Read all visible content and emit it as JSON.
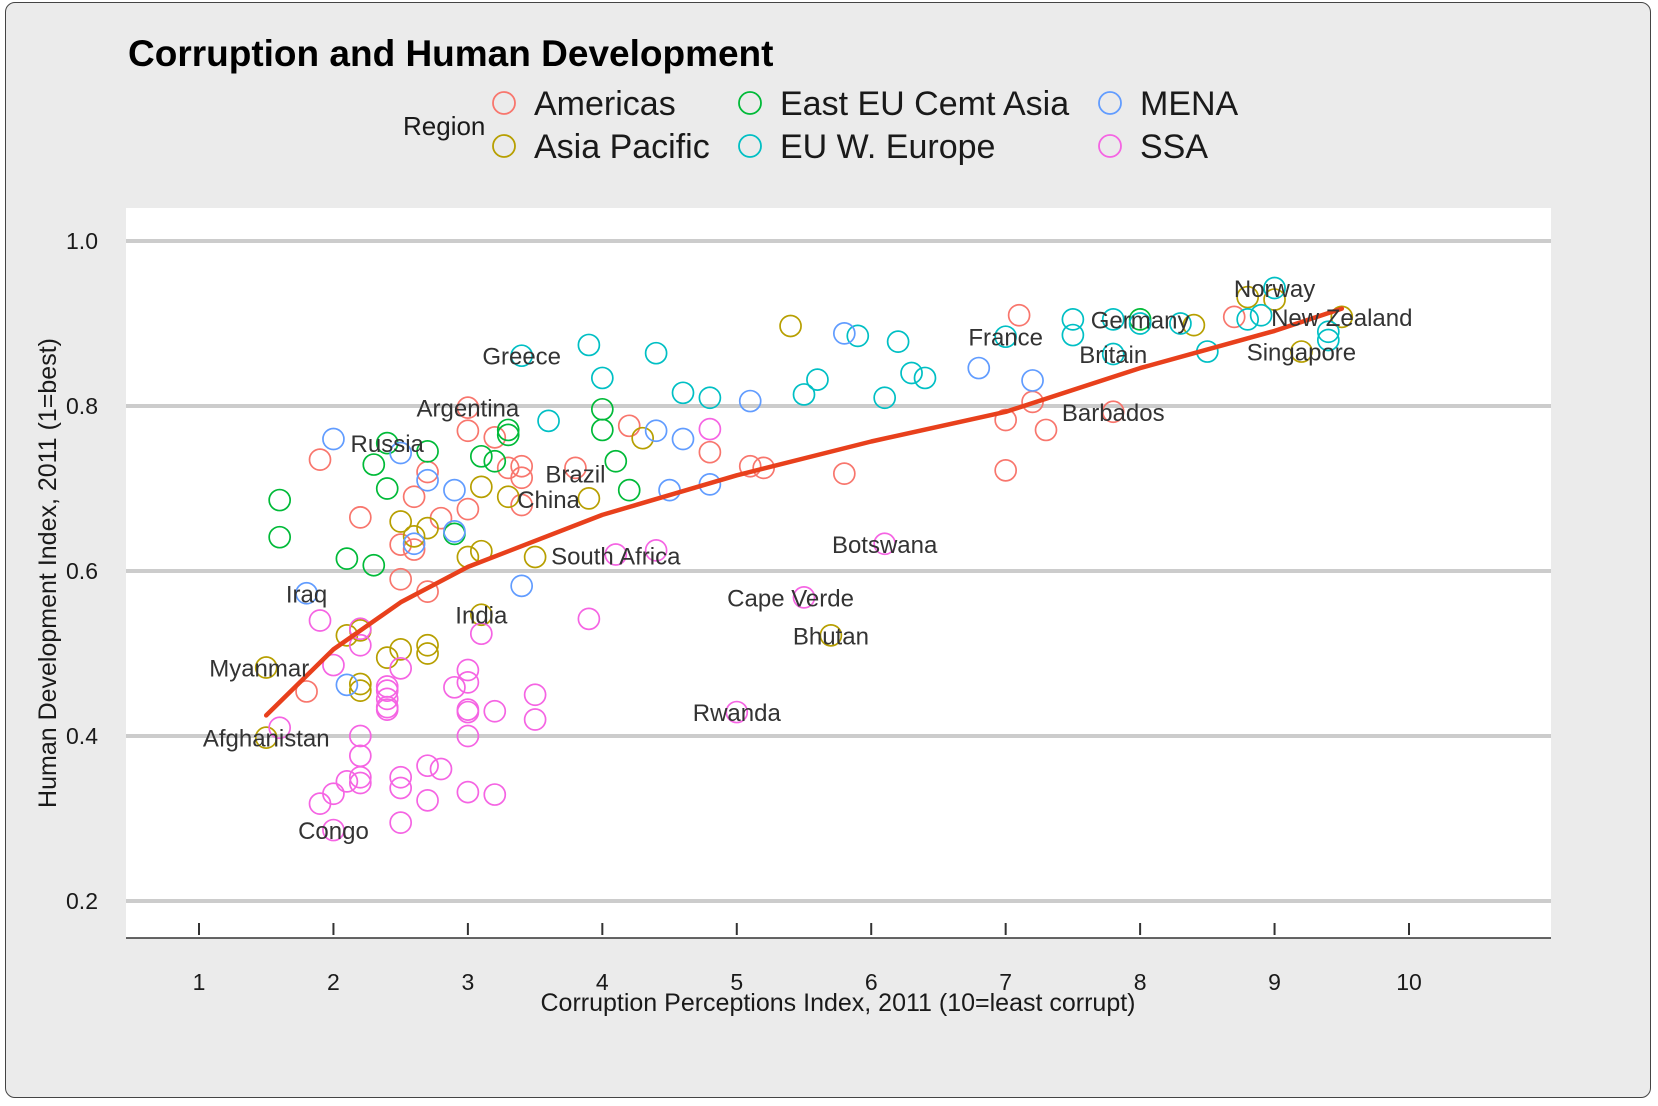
{
  "chart_data": {
    "type": "scatter",
    "title": "Corruption and Human Development",
    "xlabel": "Corruption Perceptions Index, 2011 (10=least corrupt)",
    "ylabel": "Human Development Index, 2011 (1=best)",
    "xlim": [
      0.5,
      10.5
    ],
    "ylim": [
      0.2,
      1.0
    ],
    "x_ticks": [
      1,
      2,
      3,
      4,
      5,
      6,
      7,
      8,
      9,
      10
    ],
    "y_ticks": [
      0.2,
      0.4,
      0.6,
      0.8,
      1.0
    ],
    "grid": "horizontal",
    "legend": {
      "title": "Region",
      "placement": "top",
      "entries": [
        {
          "name": "Americas",
          "color": "#f8766d"
        },
        {
          "name": "Asia Pacific",
          "color": "#b79f00"
        },
        {
          "name": "East EU Cemt Asia",
          "color": "#00ba38"
        },
        {
          "name": "EU W. Europe",
          "color": "#00bfc4"
        },
        {
          "name": "MENA",
          "color": "#619cff"
        },
        {
          "name": "SSA",
          "color": "#f564e3"
        }
      ]
    },
    "trend_line": {
      "color": "#e8401c",
      "points": [
        [
          1.5,
          0.425
        ],
        [
          2,
          0.505
        ],
        [
          2.5,
          0.562
        ],
        [
          3,
          0.605
        ],
        [
          4,
          0.668
        ],
        [
          5,
          0.716
        ],
        [
          6,
          0.757
        ],
        [
          7,
          0.793
        ],
        [
          8,
          0.846
        ],
        [
          9,
          0.891
        ],
        [
          9.5,
          0.918
        ]
      ]
    },
    "series": [
      {
        "name": "Americas",
        "color": "#f8766d",
        "points": [
          [
            1.9,
            0.735
          ],
          [
            2.2,
            0.665
          ],
          [
            2.5,
            0.59
          ],
          [
            2.5,
            0.632
          ],
          [
            2.6,
            0.69
          ],
          [
            2.6,
            0.626
          ],
          [
            2.7,
            0.575
          ],
          [
            2.7,
            0.72
          ],
          [
            2.8,
            0.664
          ],
          [
            3.0,
            0.798
          ],
          [
            3.0,
            0.77
          ],
          [
            3.0,
            0.675
          ],
          [
            3.2,
            0.762
          ],
          [
            3.3,
            0.725
          ],
          [
            3.4,
            0.727
          ],
          [
            3.4,
            0.68
          ],
          [
            3.4,
            0.713
          ],
          [
            3.8,
            0.725
          ],
          [
            4.2,
            0.776
          ],
          [
            4.8,
            0.744
          ],
          [
            5.1,
            0.727
          ],
          [
            5.2,
            0.725
          ],
          [
            5.8,
            0.718
          ],
          [
            7.0,
            0.783
          ],
          [
            7.0,
            0.722
          ],
          [
            7.1,
            0.91
          ],
          [
            7.2,
            0.805
          ],
          [
            7.3,
            0.771
          ],
          [
            7.8,
            0.793
          ],
          [
            8.7,
            0.908
          ],
          [
            1.8,
            0.454
          ]
        ]
      },
      {
        "name": "Asia Pacific",
        "color": "#b79f00",
        "points": [
          [
            1.5,
            0.483
          ],
          [
            1.5,
            0.398
          ],
          [
            2.1,
            0.522
          ],
          [
            2.2,
            0.463
          ],
          [
            2.2,
            0.455
          ],
          [
            2.2,
            0.528
          ],
          [
            2.4,
            0.495
          ],
          [
            2.5,
            0.505
          ],
          [
            2.5,
            0.66
          ],
          [
            2.6,
            0.642
          ],
          [
            2.7,
            0.51
          ],
          [
            2.7,
            0.5
          ],
          [
            2.7,
            0.652
          ],
          [
            3.0,
            0.617
          ],
          [
            3.1,
            0.547
          ],
          [
            3.1,
            0.624
          ],
          [
            3.1,
            0.702
          ],
          [
            3.3,
            0.69
          ],
          [
            3.5,
            0.617
          ],
          [
            3.9,
            0.688
          ],
          [
            4.3,
            0.761
          ],
          [
            5.4,
            0.897
          ],
          [
            5.7,
            0.522
          ],
          [
            8.4,
            0.898
          ],
          [
            8.8,
            0.932
          ],
          [
            9.0,
            0.929
          ],
          [
            9.2,
            0.866
          ],
          [
            9.5,
            0.908
          ]
        ]
      },
      {
        "name": "East EU Cemt Asia",
        "color": "#00ba38",
        "points": [
          [
            1.6,
            0.686
          ],
          [
            1.6,
            0.641
          ],
          [
            2.1,
            0.615
          ],
          [
            2.3,
            0.607
          ],
          [
            2.3,
            0.729
          ],
          [
            2.4,
            0.755
          ],
          [
            2.4,
            0.7
          ],
          [
            2.7,
            0.745
          ],
          [
            2.9,
            0.645
          ],
          [
            3.1,
            0.739
          ],
          [
            3.2,
            0.733
          ],
          [
            3.3,
            0.771
          ],
          [
            3.3,
            0.765
          ],
          [
            4.0,
            0.796
          ],
          [
            4.0,
            0.771
          ],
          [
            4.1,
            0.733
          ],
          [
            4.2,
            0.698
          ],
          [
            8.0,
            0.905
          ]
        ]
      },
      {
        "name": "EU W. Europe",
        "color": "#00bfc4",
        "points": [
          [
            3.4,
            0.861
          ],
          [
            3.6,
            0.782
          ],
          [
            3.9,
            0.874
          ],
          [
            4.0,
            0.834
          ],
          [
            4.4,
            0.864
          ],
          [
            4.6,
            0.816
          ],
          [
            4.8,
            0.81
          ],
          [
            5.5,
            0.814
          ],
          [
            5.6,
            0.832
          ],
          [
            5.9,
            0.885
          ],
          [
            6.1,
            0.81
          ],
          [
            6.2,
            0.878
          ],
          [
            6.3,
            0.84
          ],
          [
            6.4,
            0.834
          ],
          [
            7.0,
            0.884
          ],
          [
            7.5,
            0.905
          ],
          [
            7.5,
            0.886
          ],
          [
            7.8,
            0.905
          ],
          [
            7.8,
            0.863
          ],
          [
            8.0,
            0.9
          ],
          [
            8.3,
            0.9
          ],
          [
            8.5,
            0.866
          ],
          [
            8.8,
            0.905
          ],
          [
            8.9,
            0.91
          ],
          [
            9.0,
            0.943
          ],
          [
            9.4,
            0.89
          ],
          [
            9.4,
            0.88
          ]
        ]
      },
      {
        "name": "MENA",
        "color": "#619cff",
        "points": [
          [
            1.8,
            0.573
          ],
          [
            2.0,
            0.76
          ],
          [
            2.1,
            0.462
          ],
          [
            2.5,
            0.743
          ],
          [
            2.6,
            0.633
          ],
          [
            2.7,
            0.71
          ],
          [
            2.9,
            0.698
          ],
          [
            2.9,
            0.648
          ],
          [
            3.4,
            0.582
          ],
          [
            4.4,
            0.77
          ],
          [
            4.5,
            0.698
          ],
          [
            4.6,
            0.76
          ],
          [
            4.8,
            0.705
          ],
          [
            5.1,
            0.806
          ],
          [
            5.8,
            0.888
          ],
          [
            6.8,
            0.846
          ],
          [
            7.2,
            0.831
          ]
        ]
      },
      {
        "name": "SSA",
        "color": "#f564e3",
        "points": [
          [
            1.6,
            0.41
          ],
          [
            1.9,
            0.318
          ],
          [
            1.9,
            0.54
          ],
          [
            2.0,
            0.486
          ],
          [
            2.0,
            0.286
          ],
          [
            2.0,
            0.33
          ],
          [
            2.1,
            0.345
          ],
          [
            2.2,
            0.4
          ],
          [
            2.2,
            0.376
          ],
          [
            2.2,
            0.35
          ],
          [
            2.2,
            0.343
          ],
          [
            2.2,
            0.51
          ],
          [
            2.2,
            0.53
          ],
          [
            2.4,
            0.46
          ],
          [
            2.4,
            0.455
          ],
          [
            2.4,
            0.445
          ],
          [
            2.4,
            0.435
          ],
          [
            2.4,
            0.432
          ],
          [
            2.5,
            0.482
          ],
          [
            2.5,
            0.35
          ],
          [
            2.5,
            0.337
          ],
          [
            2.5,
            0.295
          ],
          [
            2.7,
            0.364
          ],
          [
            2.7,
            0.322
          ],
          [
            2.8,
            0.36
          ],
          [
            2.9,
            0.459
          ],
          [
            3.0,
            0.48
          ],
          [
            3.0,
            0.465
          ],
          [
            3.0,
            0.432
          ],
          [
            3.0,
            0.429
          ],
          [
            3.0,
            0.4
          ],
          [
            3.0,
            0.332
          ],
          [
            3.1,
            0.524
          ],
          [
            3.2,
            0.43
          ],
          [
            3.2,
            0.329
          ],
          [
            3.5,
            0.45
          ],
          [
            3.5,
            0.42
          ],
          [
            3.9,
            0.542
          ],
          [
            4.1,
            0.62
          ],
          [
            4.4,
            0.625
          ],
          [
            4.8,
            0.772
          ],
          [
            5.0,
            0.429
          ],
          [
            5.5,
            0.568
          ],
          [
            6.1,
            0.633
          ]
        ]
      }
    ],
    "annotations": [
      {
        "text": "Congo",
        "x": 2.0,
        "y": 0.286,
        "anchor": "middle"
      },
      {
        "text": "Afghanistan",
        "x": 1.5,
        "y": 0.398,
        "anchor": "middle"
      },
      {
        "text": "Myanmar",
        "x": 1.5,
        "y": 0.483,
        "anchor": "start"
      },
      {
        "text": "Iraq",
        "x": 1.8,
        "y": 0.573,
        "anchor": "middle"
      },
      {
        "text": "Russia",
        "x": 2.4,
        "y": 0.755,
        "anchor": "middle"
      },
      {
        "text": "Argentina",
        "x": 3.0,
        "y": 0.798,
        "anchor": "middle"
      },
      {
        "text": "Greece",
        "x": 3.4,
        "y": 0.861,
        "anchor": "middle"
      },
      {
        "text": "Brazil",
        "x": 3.8,
        "y": 0.718,
        "anchor": "middle"
      },
      {
        "text": "China",
        "x": 3.6,
        "y": 0.687,
        "anchor": "middle"
      },
      {
        "text": "India",
        "x": 3.1,
        "y": 0.547,
        "anchor": "middle"
      },
      {
        "text": "South Africa",
        "x": 4.1,
        "y": 0.619,
        "anchor": "middle"
      },
      {
        "text": "Rwanda",
        "x": 5.0,
        "y": 0.429,
        "anchor": "middle"
      },
      {
        "text": "Cape Verde",
        "x": 5.4,
        "y": 0.568,
        "anchor": "middle"
      },
      {
        "text": "Bhutan",
        "x": 5.7,
        "y": 0.522,
        "anchor": "middle"
      },
      {
        "text": "Botswana",
        "x": 6.1,
        "y": 0.633,
        "anchor": "middle"
      },
      {
        "text": "France",
        "x": 7.0,
        "y": 0.884,
        "anchor": "middle"
      },
      {
        "text": "Germany",
        "x": 8.0,
        "y": 0.905,
        "anchor": "middle"
      },
      {
        "text": "Britain",
        "x": 7.8,
        "y": 0.863,
        "anchor": "middle"
      },
      {
        "text": "Barbados",
        "x": 7.8,
        "y": 0.793,
        "anchor": "middle"
      },
      {
        "text": "Norway",
        "x": 9.0,
        "y": 0.943,
        "anchor": "middle"
      },
      {
        "text": "New Zealand",
        "x": 9.5,
        "y": 0.908,
        "anchor": "middle"
      },
      {
        "text": "Singapore",
        "x": 9.2,
        "y": 0.866,
        "anchor": "middle"
      }
    ]
  }
}
